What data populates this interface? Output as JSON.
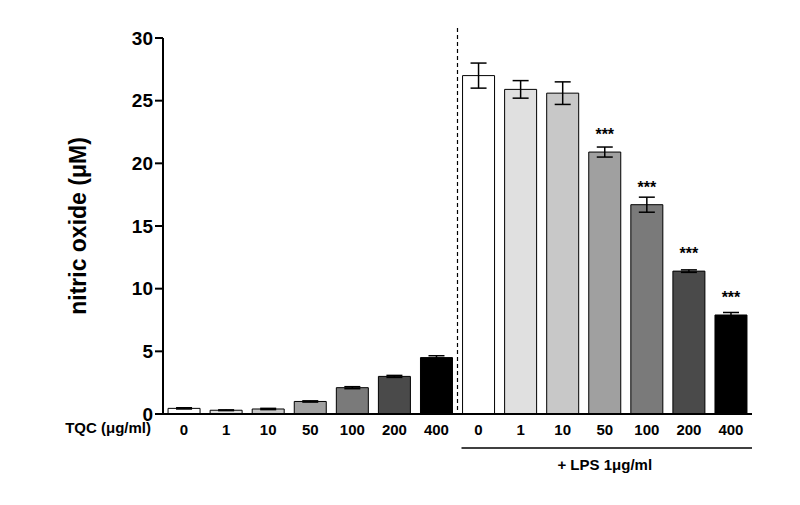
{
  "chart_data": {
    "type": "bar",
    "categories": [
      "0",
      "1",
      "10",
      "50",
      "100",
      "200",
      "400",
      "0",
      "1",
      "10",
      "50",
      "100",
      "200",
      "400"
    ],
    "values": [
      0.45,
      0.3,
      0.4,
      1.0,
      2.1,
      3.0,
      4.5,
      27.0,
      25.9,
      25.6,
      20.9,
      16.7,
      11.4,
      7.9
    ],
    "errors": [
      0.05,
      0.03,
      0.05,
      0.05,
      0.08,
      0.08,
      0.15,
      1.0,
      0.7,
      0.9,
      0.4,
      0.6,
      0.1,
      0.2
    ],
    "annotations": [
      null,
      null,
      null,
      null,
      null,
      null,
      null,
      null,
      null,
      null,
      "***",
      "***",
      "***",
      "***"
    ],
    "colors": [
      "#ffffff",
      "#e0e0e0",
      "#c8c8c8",
      "#a0a0a0",
      "#7a7a7a",
      "#4a4a4a",
      "#000000",
      "#ffffff",
      "#e0e0e0",
      "#c8c8c8",
      "#a0a0a0",
      "#7a7a7a",
      "#4a4a4a",
      "#000000"
    ],
    "xlabel": "TQC (μg/ml)",
    "ylabel": "nitric oxide (μM)",
    "group_label": "+ LPS 1μg/ml",
    "ylim": [
      0,
      30
    ],
    "yticks": [
      0,
      5,
      10,
      15,
      20,
      25,
      30
    ]
  }
}
